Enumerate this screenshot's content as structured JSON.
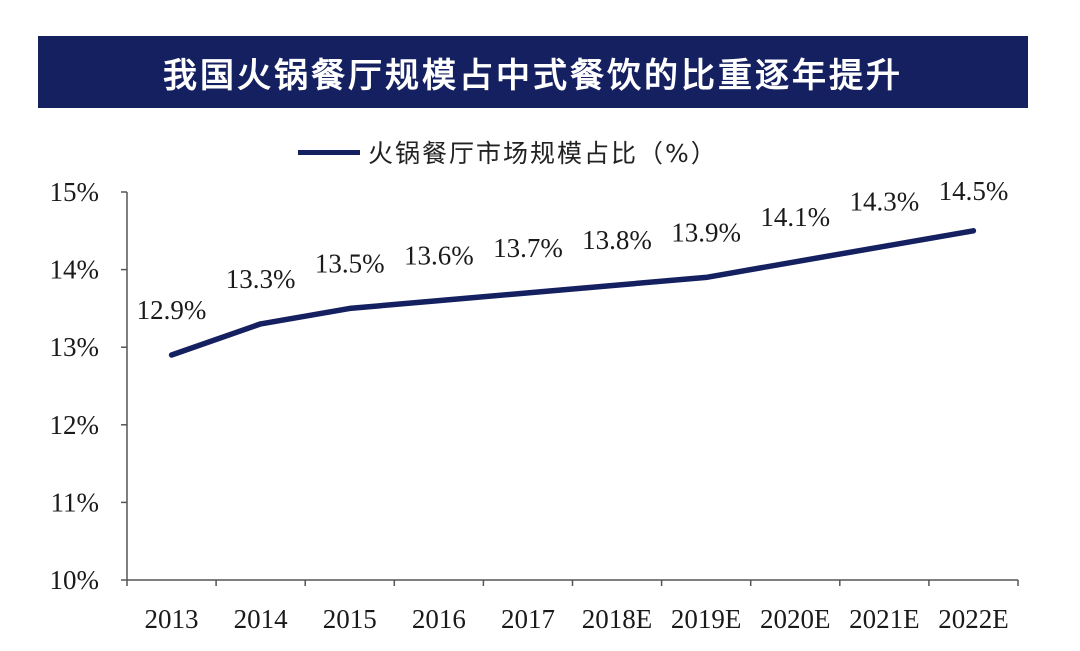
{
  "title": "我国火锅餐厅规模占中式餐饮的比重逐年提升",
  "chart_data": {
    "type": "line",
    "title": "我国火锅餐厅规模占中式餐饮的比重逐年提升",
    "categories": [
      "2013",
      "2014",
      "2015",
      "2016",
      "2017",
      "2018E",
      "2019E",
      "2020E",
      "2021E",
      "2022E"
    ],
    "series": [
      {
        "name": "火锅餐厅市场规模占比（%）",
        "values": [
          12.9,
          13.3,
          13.5,
          13.6,
          13.7,
          13.8,
          13.9,
          14.1,
          14.3,
          14.5
        ],
        "labels": [
          "12.9%",
          "13.3%",
          "13.5%",
          "13.6%",
          "13.7%",
          "13.8%",
          "13.9%",
          "14.1%",
          "14.3%",
          "14.5%"
        ],
        "color": "#152060"
      }
    ],
    "ylim": [
      10,
      15
    ],
    "yticks": [
      10,
      11,
      12,
      13,
      14,
      15
    ],
    "ytick_labels": [
      "10%",
      "11%",
      "12%",
      "13%",
      "14%",
      "15%"
    ],
    "xlabel": "",
    "ylabel": "",
    "grid": false,
    "legend_position": "top"
  }
}
